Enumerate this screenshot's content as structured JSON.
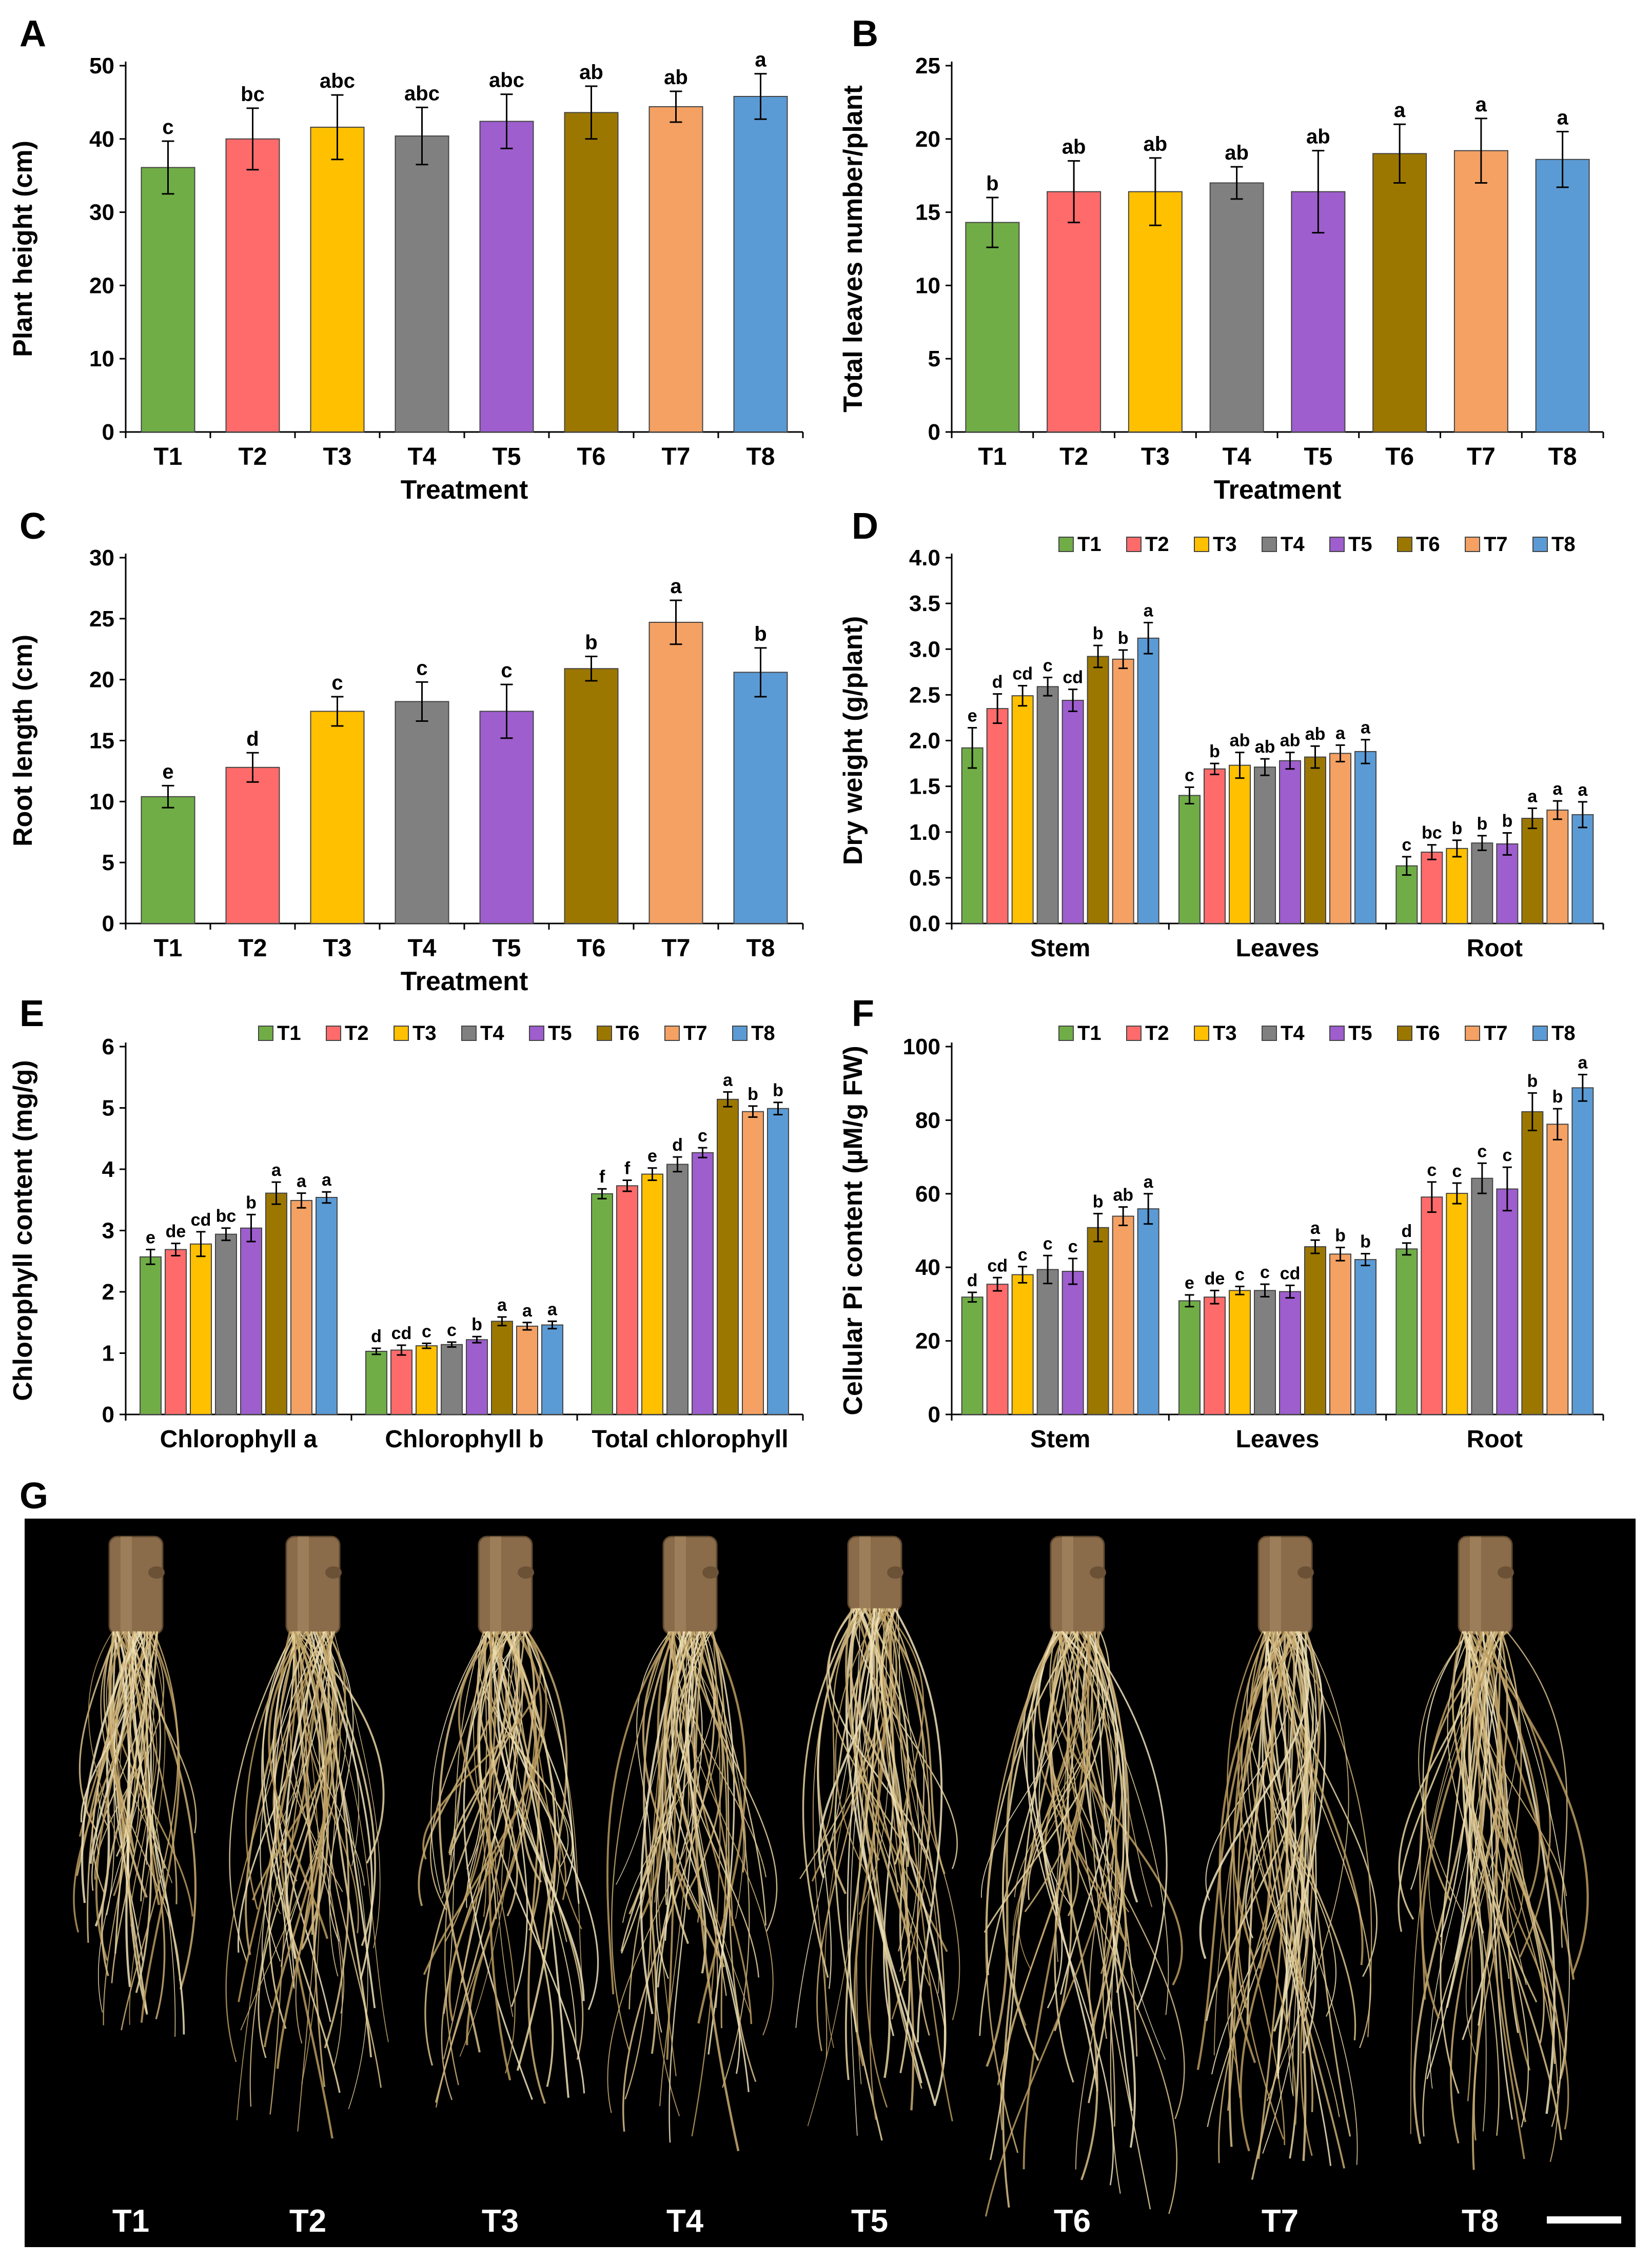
{
  "panel_letters": [
    "A",
    "B",
    "C",
    "D",
    "E",
    "F",
    "G"
  ],
  "treatments": [
    "T1",
    "T2",
    "T3",
    "T4",
    "T5",
    "T6",
    "T7",
    "T8"
  ],
  "colors": [
    "#70AD47",
    "#FF6B6B",
    "#FFC000",
    "#808080",
    "#9E5ECE",
    "#9C7700",
    "#F4A163",
    "#5B9BD5"
  ],
  "chart_data": [
    {
      "panel": "A",
      "type": "bar",
      "xlabel": "Treatment",
      "ylabel": "Plant height (cm)",
      "ylim": [
        0,
        50
      ],
      "yticks": [
        0,
        10,
        20,
        30,
        40,
        50
      ],
      "categories": [
        "T1",
        "T2",
        "T3",
        "T4",
        "T5",
        "T6",
        "T7",
        "T8"
      ],
      "values": [
        36.1,
        40.0,
        41.6,
        40.4,
        42.4,
        43.6,
        44.4,
        45.8
      ],
      "errors": [
        3.6,
        4.2,
        4.4,
        3.9,
        3.7,
        3.6,
        2.1,
        3.1
      ],
      "letters": [
        "c",
        "bc",
        "abc",
        "abc",
        "abc",
        "ab",
        "ab",
        "a"
      ]
    },
    {
      "panel": "B",
      "type": "bar",
      "xlabel": "Treatment",
      "ylabel": "Total leaves number/plant",
      "ylim": [
        0,
        25
      ],
      "yticks": [
        0,
        5,
        10,
        15,
        20,
        25
      ],
      "categories": [
        "T1",
        "T2",
        "T3",
        "T4",
        "T5",
        "T6",
        "T7",
        "T8"
      ],
      "values": [
        14.3,
        16.4,
        16.4,
        17.0,
        16.4,
        19.0,
        19.2,
        18.6
      ],
      "errors": [
        1.7,
        2.1,
        2.3,
        1.1,
        2.8,
        2.0,
        2.2,
        1.9
      ],
      "letters": [
        "b",
        "ab",
        "ab",
        "ab",
        "ab",
        "a",
        "a",
        "a"
      ]
    },
    {
      "panel": "C",
      "type": "bar",
      "xlabel": "Treatment",
      "ylabel": "Root length (cm)",
      "ylim": [
        0,
        30
      ],
      "yticks": [
        0,
        5,
        10,
        15,
        20,
        25,
        30
      ],
      "categories": [
        "T1",
        "T2",
        "T3",
        "T4",
        "T5",
        "T6",
        "T7",
        "T8"
      ],
      "values": [
        10.4,
        12.8,
        17.4,
        18.2,
        17.4,
        20.9,
        24.7,
        20.6
      ],
      "errors": [
        0.9,
        1.2,
        1.2,
        1.6,
        2.2,
        1.0,
        1.8,
        2.0
      ],
      "letters": [
        "e",
        "d",
        "c",
        "c",
        "c",
        "b",
        "a",
        "b"
      ]
    },
    {
      "panel": "D",
      "type": "bar",
      "xlabel": "",
      "ylabel": "Dry weight (g/plant)",
      "ylim": [
        0,
        4
      ],
      "yticks": [
        "0.0",
        "0.5",
        "1.0",
        "1.5",
        "2.0",
        "2.5",
        "3.0",
        "3.5",
        "4.0"
      ],
      "legend": "top",
      "categories": [
        "Stem",
        "Leaves",
        "Root"
      ],
      "series": [
        {
          "name": "T1",
          "values": [
            1.92,
            1.4,
            0.63
          ],
          "errors": [
            0.22,
            0.09,
            0.1
          ],
          "letters": [
            "e",
            "c",
            "c"
          ]
        },
        {
          "name": "T2",
          "values": [
            2.35,
            1.69,
            0.78
          ],
          "errors": [
            0.16,
            0.06,
            0.08
          ],
          "letters": [
            "d",
            "b",
            "bc"
          ]
        },
        {
          "name": "T3",
          "values": [
            2.49,
            1.73,
            0.82
          ],
          "errors": [
            0.11,
            0.14,
            0.09
          ],
          "letters": [
            "cd",
            "ab",
            "b"
          ]
        },
        {
          "name": "T4",
          "values": [
            2.59,
            1.71,
            0.88
          ],
          "errors": [
            0.1,
            0.09,
            0.08
          ],
          "letters": [
            "c",
            "ab",
            "b"
          ]
        },
        {
          "name": "T5",
          "values": [
            2.44,
            1.78,
            0.87
          ],
          "errors": [
            0.12,
            0.09,
            0.12
          ],
          "letters": [
            "cd",
            "ab",
            "b"
          ]
        },
        {
          "name": "T6",
          "values": [
            2.92,
            1.82,
            1.15
          ],
          "errors": [
            0.12,
            0.12,
            0.11
          ],
          "letters": [
            "b",
            "ab",
            "a"
          ]
        },
        {
          "name": "T7",
          "values": [
            2.89,
            1.86,
            1.24
          ],
          "errors": [
            0.1,
            0.09,
            0.1
          ],
          "letters": [
            "b",
            "a",
            "a"
          ]
        },
        {
          "name": "T8",
          "values": [
            3.12,
            1.88,
            1.19
          ],
          "errors": [
            0.17,
            0.13,
            0.14
          ],
          "letters": [
            "a",
            "a",
            "a"
          ]
        }
      ]
    },
    {
      "panel": "E",
      "type": "bar",
      "xlabel": "",
      "ylabel": "Chlorophyll content (mg/g)",
      "ylim": [
        0,
        6
      ],
      "yticks": [
        0,
        1,
        2,
        3,
        4,
        5,
        6
      ],
      "legend": "top",
      "categories": [
        "Chlorophyll a",
        "Chlorophyll b",
        "Total chlorophyll"
      ],
      "series": [
        {
          "name": "T1",
          "values": [
            2.57,
            1.03,
            3.6
          ],
          "errors": [
            0.12,
            0.05,
            0.08
          ],
          "letters": [
            "e",
            "d",
            "f"
          ]
        },
        {
          "name": "T2",
          "values": [
            2.69,
            1.05,
            3.73
          ],
          "errors": [
            0.1,
            0.08,
            0.09
          ],
          "letters": [
            "de",
            "cd",
            "f"
          ]
        },
        {
          "name": "T3",
          "values": [
            2.78,
            1.12,
            3.92
          ],
          "errors": [
            0.2,
            0.04,
            0.1
          ],
          "letters": [
            "cd",
            "c",
            "e"
          ]
        },
        {
          "name": "T4",
          "values": [
            2.94,
            1.14,
            4.08
          ],
          "errors": [
            0.1,
            0.04,
            0.12
          ],
          "letters": [
            "bc",
            "c",
            "d"
          ]
        },
        {
          "name": "T5",
          "values": [
            3.04,
            1.22,
            4.27
          ],
          "errors": [
            0.22,
            0.05,
            0.08
          ],
          "letters": [
            "b",
            "b",
            "c"
          ]
        },
        {
          "name": "T6",
          "values": [
            3.61,
            1.52,
            5.14
          ],
          "errors": [
            0.18,
            0.07,
            0.12
          ],
          "letters": [
            "a",
            "a",
            "a"
          ]
        },
        {
          "name": "T7",
          "values": [
            3.49,
            1.44,
            4.94
          ],
          "errors": [
            0.12,
            0.06,
            0.09
          ],
          "letters": [
            "a",
            "a",
            "b"
          ]
        },
        {
          "name": "T8",
          "values": [
            3.54,
            1.46,
            4.99
          ],
          "errors": [
            0.09,
            0.06,
            0.1
          ],
          "letters": [
            "a",
            "a",
            "b"
          ]
        }
      ]
    },
    {
      "panel": "F",
      "type": "bar",
      "xlabel": "",
      "ylabel": "Cellular Pi content (µM/g FW)",
      "ylim": [
        0,
        100
      ],
      "yticks": [
        0,
        20,
        40,
        60,
        80,
        100
      ],
      "legend": "top",
      "categories": [
        "Stem",
        "Leaves",
        "Root"
      ],
      "series": [
        {
          "name": "T1",
          "values": [
            31.9,
            30.9,
            45.0
          ],
          "errors": [
            1.3,
            1.6,
            1.6
          ],
          "letters": [
            "d",
            "e",
            "d"
          ]
        },
        {
          "name": "T2",
          "values": [
            35.4,
            31.9,
            59.1
          ],
          "errors": [
            1.8,
            1.8,
            4.1
          ],
          "letters": [
            "cd",
            "de",
            "c"
          ]
        },
        {
          "name": "T3",
          "values": [
            38.0,
            33.7,
            60.1
          ],
          "errors": [
            2.2,
            1.1,
            2.8
          ],
          "letters": [
            "c",
            "c",
            "c"
          ]
        },
        {
          "name": "T4",
          "values": [
            39.4,
            33.7,
            64.2
          ],
          "errors": [
            3.8,
            1.7,
            4.1
          ],
          "letters": [
            "c",
            "c",
            "c"
          ]
        },
        {
          "name": "T5",
          "values": [
            38.9,
            33.4,
            61.3
          ],
          "errors": [
            3.5,
            1.7,
            5.9
          ],
          "letters": [
            "c",
            "cd",
            "c"
          ]
        },
        {
          "name": "T6",
          "values": [
            50.8,
            45.6,
            82.3
          ],
          "errors": [
            3.8,
            1.8,
            5.1
          ],
          "letters": [
            "b",
            "a",
            "b"
          ]
        },
        {
          "name": "T7",
          "values": [
            53.9,
            43.6,
            78.9
          ],
          "errors": [
            2.5,
            1.8,
            4.2
          ],
          "letters": [
            "ab",
            "b",
            "b"
          ]
        },
        {
          "name": "T8",
          "values": [
            55.9,
            42.1,
            88.8
          ],
          "errors": [
            4.1,
            1.6,
            3.6
          ],
          "letters": [
            "a",
            "b",
            "a"
          ]
        }
      ]
    }
  ],
  "photo": {
    "panel": "G",
    "labels": [
      "T1",
      "T2",
      "T3",
      "T4",
      "T5",
      "T6",
      "T7",
      "T8"
    ],
    "scale_bar": true
  }
}
